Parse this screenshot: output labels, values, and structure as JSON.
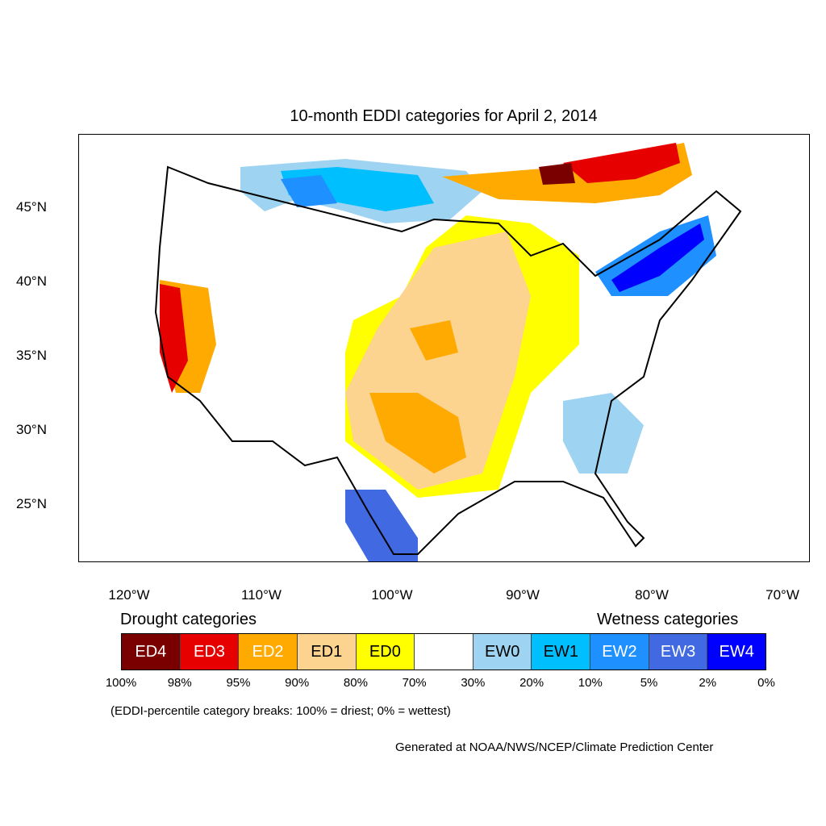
{
  "title": "10-month EDDI categories for April 2, 2014",
  "lat_labels": [
    "45°N",
    "40°N",
    "35°N",
    "30°N",
    "25°N"
  ],
  "lon_labels": [
    "120°W",
    "110°W",
    "100°W",
    "90°W",
    "80°W",
    "70°W"
  ],
  "legend": {
    "drought_heading": "Drought categories",
    "wetness_heading": "Wetness categories",
    "categories": [
      {
        "label": "ED4",
        "color": "#7a0000",
        "text_color": "#ffffff"
      },
      {
        "label": "ED3",
        "color": "#e60000",
        "text_color": "#ffffff"
      },
      {
        "label": "ED2",
        "color": "#ffaa00",
        "text_color": "#ffffff"
      },
      {
        "label": "ED1",
        "color": "#fcd38f",
        "text_color": "#000000"
      },
      {
        "label": "ED0",
        "color": "#ffff00",
        "text_color": "#000000"
      },
      {
        "label": "",
        "color": "#ffffff",
        "text_color": "#000000"
      },
      {
        "label": "EW0",
        "color": "#9fd3f2",
        "text_color": "#000000"
      },
      {
        "label": "EW1",
        "color": "#00bfff",
        "text_color": "#000000"
      },
      {
        "label": "EW2",
        "color": "#1e90ff",
        "text_color": "#ffffff"
      },
      {
        "label": "EW3",
        "color": "#4169e1",
        "text_color": "#ffffff"
      },
      {
        "label": "EW4",
        "color": "#0000ff",
        "text_color": "#ffffff"
      }
    ],
    "breaks": [
      "100%",
      "98%",
      "95%",
      "90%",
      "80%",
      "70%",
      "30%",
      "20%",
      "10%",
      "5%",
      "2%",
      "0%"
    ]
  },
  "note": "(EDDI-percentile category breaks: 100% = driest; 0% = wettest)",
  "credit": "Generated at NOAA/NWS/NCEP/Climate Prediction Center"
}
